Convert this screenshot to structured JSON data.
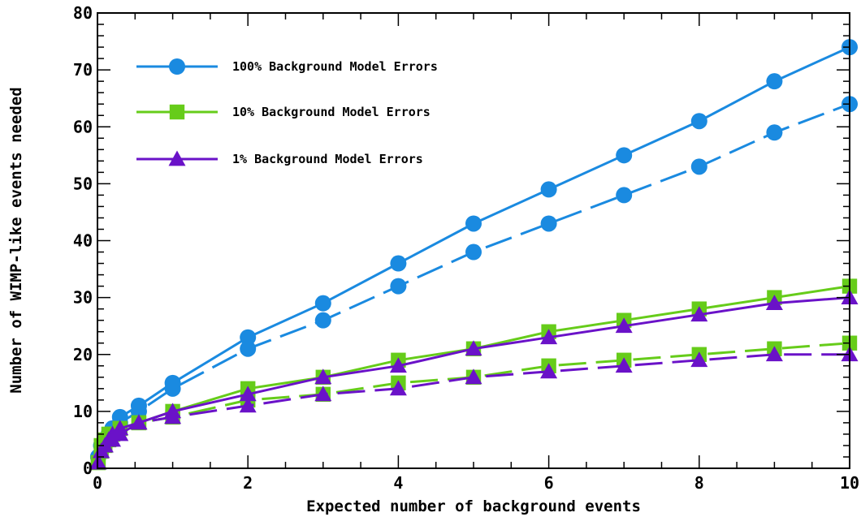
{
  "chart_data": {
    "type": "line",
    "xlabel": "Expected number of background events",
    "ylabel": "Number of WIMP-like events needed",
    "xlim": [
      0,
      10
    ],
    "ylim": [
      0,
      80
    ],
    "xticks": [
      0,
      2,
      4,
      6,
      8,
      10
    ],
    "yticks": [
      0,
      10,
      20,
      30,
      40,
      50,
      60,
      70,
      80
    ],
    "xtick_labels": [
      "0",
      "2",
      "4",
      "6",
      "8",
      "10"
    ],
    "ytick_labels": [
      "0",
      "10",
      "20",
      "30",
      "40",
      "50",
      "60",
      "70",
      "80"
    ],
    "grid": false,
    "legend_position": "top-left",
    "legend": [
      {
        "label": "100% Background Model Errors",
        "color": "#1a8ae0",
        "marker": "circle"
      },
      {
        "label": "10% Background Model Errors",
        "color": "#66cc1a",
        "marker": "square"
      },
      {
        "label": "1% Background Model Errors",
        "color": "#6a12c8",
        "marker": "triangle"
      }
    ],
    "series": [
      {
        "color": "#1a8ae0",
        "marker": "circle",
        "dash": "solid",
        "x": [
          0.01,
          0.05,
          0.1,
          0.15,
          0.2,
          0.3,
          0.55,
          1,
          2,
          3,
          4,
          5,
          6,
          7,
          8,
          9,
          10
        ],
        "y": [
          2,
          4,
          5,
          6,
          7,
          9,
          11,
          15,
          23,
          29,
          36,
          43,
          49,
          55,
          61,
          68,
          74
        ]
      },
      {
        "color": "#1a8ae0",
        "marker": "circle",
        "dash": "dashed",
        "x": [
          0.01,
          0.05,
          0.1,
          0.15,
          0.2,
          0.3,
          0.55,
          1,
          2,
          3,
          4,
          5,
          6,
          7,
          8,
          9,
          10
        ],
        "y": [
          2,
          4,
          5,
          6,
          7,
          8,
          10,
          14,
          21,
          26,
          32,
          38,
          43,
          48,
          53,
          59,
          64
        ]
      },
      {
        "color": "#66cc1a",
        "marker": "square",
        "dash": "solid",
        "x": [
          0.01,
          0.05,
          0.1,
          0.15,
          0.2,
          0.3,
          0.55,
          1,
          2,
          3,
          4,
          5,
          6,
          7,
          8,
          9,
          10
        ],
        "y": [
          1,
          4,
          5,
          6,
          6,
          7,
          8,
          10,
          14,
          16,
          19,
          21,
          24,
          26,
          28,
          30,
          32
        ]
      },
      {
        "color": "#66cc1a",
        "marker": "square",
        "dash": "dashed",
        "x": [
          0.01,
          0.05,
          0.1,
          0.15,
          0.2,
          0.3,
          0.55,
          1,
          2,
          3,
          4,
          5,
          6,
          7,
          8,
          9,
          10
        ],
        "y": [
          1,
          3,
          4,
          5,
          6,
          7,
          8,
          9,
          12,
          13,
          15,
          16,
          18,
          19,
          20,
          21,
          22
        ]
      },
      {
        "color": "#6a12c8",
        "marker": "triangle",
        "dash": "solid",
        "x": [
          0.01,
          0.05,
          0.1,
          0.15,
          0.2,
          0.3,
          0.55,
          1,
          2,
          3,
          4,
          5,
          6,
          7,
          8,
          9,
          10
        ],
        "y": [
          1,
          3,
          4,
          5,
          6,
          7,
          8,
          10,
          13,
          16,
          18,
          21,
          23,
          25,
          27,
          29,
          30
        ]
      },
      {
        "color": "#6a12c8",
        "marker": "triangle",
        "dash": "dashed",
        "x": [
          0.01,
          0.05,
          0.1,
          0.15,
          0.2,
          0.3,
          0.55,
          1,
          2,
          3,
          4,
          5,
          6,
          7,
          8,
          9,
          10
        ],
        "y": [
          1,
          3,
          4,
          5,
          5,
          6,
          8,
          9,
          11,
          13,
          14,
          16,
          17,
          18,
          19,
          20,
          20
        ]
      }
    ]
  }
}
